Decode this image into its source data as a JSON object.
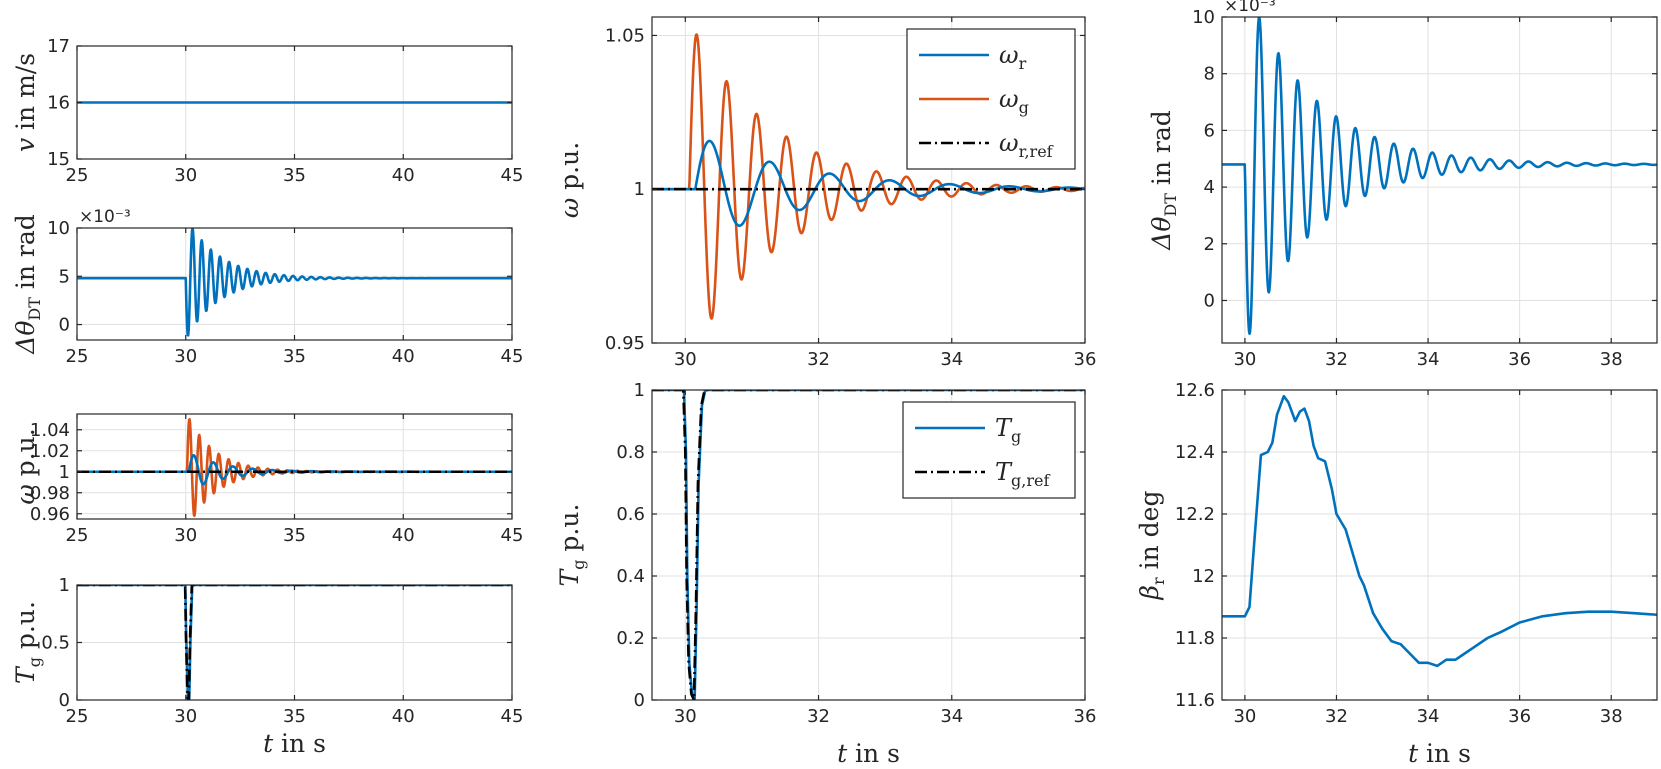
{
  "figure": {
    "colors": {
      "blue": "#0072BD",
      "orange": "#D95319",
      "black": "#000000",
      "grid": "#E1E1E1",
      "axis": "#262626"
    }
  },
  "chart_data": [
    {
      "id": "v",
      "type": "line",
      "xlabel": {
        "main": "",
        "sub": "",
        "post": ""
      },
      "ylabel": {
        "main": "v",
        "sub": "",
        "post": " in m/s"
      },
      "xlim": [
        25,
        45
      ],
      "ylim": [
        15,
        17
      ],
      "xticks": [
        25,
        30,
        35,
        40,
        45
      ],
      "yticks": [
        15,
        16,
        17
      ],
      "multiplier": "",
      "series": [
        {
          "name": "v",
          "color": "blue",
          "style": "solid",
          "x": [
            25,
            45
          ],
          "y": [
            16,
            16
          ]
        }
      ]
    },
    {
      "id": "dtheta_small",
      "type": "line",
      "xlabel": {
        "main": "",
        "sub": "",
        "post": ""
      },
      "ylabel": {
        "main": "Δθ",
        "sub": "DT",
        "post": " in rad"
      },
      "xlim": [
        25,
        45
      ],
      "ylim": [
        -1.6,
        10
      ],
      "xticks": [
        25,
        30,
        35,
        40,
        45
      ],
      "yticks": [
        0,
        5,
        10
      ],
      "multiplier": "×10⁻³",
      "series": [
        {
          "name": "Δθ_DT",
          "color": "blue",
          "style": "solid",
          "gen": {
            "kind": "damped",
            "base": 4.8,
            "t0": 30,
            "amp": -6.4,
            "tau": 1.5,
            "period": 0.42,
            "xmin": 25,
            "xmax": 45
          }
        }
      ]
    },
    {
      "id": "omega_small",
      "type": "line",
      "xlabel": {
        "main": "",
        "sub": "",
        "post": ""
      },
      "ylabel": {
        "main": "ω",
        "sub": "",
        "post": " p.u."
      },
      "xlim": [
        25,
        45
      ],
      "ylim": [
        0.955,
        1.055
      ],
      "xticks": [
        25,
        30,
        35,
        40,
        45
      ],
      "yticks": [
        0.96,
        0.98,
        1,
        1.02,
        1.04
      ],
      "multiplier": "",
      "series": [
        {
          "name": "ω_g",
          "color": "orange",
          "style": "solid",
          "gen": {
            "kind": "damped",
            "base": 1.0,
            "t0": 30.06,
            "amp": 0.055,
            "tau": 1.25,
            "period": 0.45,
            "xmin": 25,
            "xmax": 45
          }
        },
        {
          "name": "ω_r",
          "color": "blue",
          "style": "solid",
          "gen": {
            "kind": "damped",
            "base": 1.0,
            "t0": 30.15,
            "amp": 0.018,
            "tau": 1.6,
            "period": 0.9,
            "xmin": 25,
            "xmax": 45
          }
        },
        {
          "name": "ω_r,ref",
          "color": "black",
          "style": "dashdot",
          "x": [
            25,
            45
          ],
          "y": [
            1,
            1
          ]
        }
      ]
    },
    {
      "id": "tg_small",
      "type": "line",
      "xlabel": {
        "main": "t",
        "sub": "",
        "post": " in s"
      },
      "ylabel": {
        "main": "T",
        "sub": "g",
        "post": " p.u."
      },
      "xlim": [
        25,
        45
      ],
      "ylim": [
        0,
        1
      ],
      "xticks": [
        25,
        30,
        35,
        40,
        45
      ],
      "yticks": [
        0,
        0.5,
        1
      ],
      "multiplier": "",
      "series": [
        {
          "name": "T_g",
          "color": "blue",
          "style": "solid",
          "x": [
            25,
            29.98,
            30.02,
            30.1,
            30.16,
            30.22,
            30.3,
            45
          ],
          "y": [
            1,
            1,
            0.55,
            0.02,
            0,
            0.55,
            1,
            1
          ]
        },
        {
          "name": "T_g,ref",
          "color": "black",
          "style": "dashdot",
          "x": [
            25,
            29.97,
            30.01,
            30.08,
            30.14,
            30.2,
            30.28,
            45
          ],
          "y": [
            1,
            1,
            0.55,
            0.02,
            0,
            0.55,
            1,
            1
          ]
        }
      ]
    },
    {
      "id": "omega_zoom",
      "type": "line",
      "xlabel": {
        "main": "",
        "sub": "",
        "post": ""
      },
      "ylabel": {
        "main": "ω",
        "sub": "",
        "post": " p.u."
      },
      "xlim": [
        29.5,
        36
      ],
      "ylim": [
        0.95,
        1.056
      ],
      "xticks": [
        30,
        32,
        34,
        36
      ],
      "yticks": [
        0.95,
        1,
        1.05
      ],
      "multiplier": "",
      "legend": {
        "position": "top-right",
        "entries": [
          {
            "main": "ω",
            "sub": "r",
            "color": "blue",
            "style": "solid"
          },
          {
            "main": "ω",
            "sub": "g",
            "color": "orange",
            "style": "solid"
          },
          {
            "main": "ω",
            "sub": "r,ref",
            "color": "black",
            "style": "dashdot"
          }
        ]
      },
      "series": [
        {
          "name": "ω_g",
          "color": "orange",
          "style": "solid",
          "gen": {
            "kind": "damped",
            "base": 1.0,
            "t0": 30.06,
            "amp": 0.055,
            "tau": 1.25,
            "period": 0.45,
            "xmin": 29.5,
            "xmax": 36
          }
        },
        {
          "name": "ω_r",
          "color": "blue",
          "style": "solid",
          "gen": {
            "kind": "damped",
            "base": 1.0,
            "t0": 30.15,
            "amp": 0.018,
            "tau": 1.6,
            "period": 0.9,
            "xmin": 29.5,
            "xmax": 36
          }
        },
        {
          "name": "ω_r,ref",
          "color": "black",
          "style": "dashdot",
          "x": [
            29.5,
            36
          ],
          "y": [
            1,
            1
          ]
        }
      ]
    },
    {
      "id": "tg_zoom",
      "type": "line",
      "xlabel": {
        "main": "t",
        "sub": "",
        "post": " in s"
      },
      "ylabel": {
        "main": "T",
        "sub": "g",
        "post": " p.u."
      },
      "xlim": [
        29.5,
        36
      ],
      "ylim": [
        0,
        1
      ],
      "xticks": [
        30,
        32,
        34,
        36
      ],
      "yticks": [
        0,
        0.2,
        0.4,
        0.6,
        0.8,
        1
      ],
      "multiplier": "",
      "legend": {
        "position": "top-right",
        "entries": [
          {
            "main": "T",
            "sub": "g",
            "color": "blue",
            "style": "solid"
          },
          {
            "main": "T",
            "sub": "g,ref",
            "color": "black",
            "style": "dashdot"
          }
        ]
      },
      "series": [
        {
          "name": "T_g",
          "color": "blue",
          "style": "solid",
          "x": [
            29.5,
            29.98,
            30.01,
            30.03,
            30.06,
            30.1,
            30.14,
            30.17,
            30.2,
            30.25,
            30.3,
            36
          ],
          "y": [
            1,
            1,
            0.8,
            0.4,
            0.12,
            0.02,
            0,
            0.3,
            0.7,
            0.95,
            1,
            1
          ]
        },
        {
          "name": "T_g,ref",
          "color": "black",
          "style": "dashdot",
          "x": [
            29.5,
            29.97,
            30.0,
            30.02,
            30.05,
            30.09,
            30.13,
            30.16,
            30.19,
            30.24,
            30.29,
            36
          ],
          "y": [
            1,
            1,
            0.8,
            0.4,
            0.12,
            0.02,
            0,
            0.3,
            0.7,
            0.95,
            1,
            1
          ]
        }
      ]
    },
    {
      "id": "dtheta_zoom",
      "type": "line",
      "xlabel": {
        "main": "",
        "sub": "",
        "post": ""
      },
      "ylabel": {
        "main": "Δθ",
        "sub": "DT",
        "post": " in rad"
      },
      "xlim": [
        29.5,
        39
      ],
      "ylim": [
        -1.5,
        10
      ],
      "xticks": [
        30,
        32,
        34,
        36,
        38
      ],
      "yticks": [
        0,
        2,
        4,
        6,
        8,
        10
      ],
      "multiplier": "×10⁻³",
      "series": [
        {
          "name": "Δθ_DT",
          "color": "blue",
          "style": "solid",
          "gen": {
            "kind": "damped",
            "base": 4.8,
            "t0": 30,
            "amp": -6.4,
            "tau": 1.5,
            "period": 0.42,
            "xmin": 29.5,
            "xmax": 39
          }
        }
      ]
    },
    {
      "id": "beta",
      "type": "line",
      "xlabel": {
        "main": "t",
        "sub": "",
        "post": " in s"
      },
      "ylabel": {
        "main": "β",
        "sub": "r",
        "post": " in deg"
      },
      "xlim": [
        29.5,
        39
      ],
      "ylim": [
        11.6,
        12.6
      ],
      "xticks": [
        30,
        32,
        34,
        36,
        38
      ],
      "yticks": [
        11.6,
        11.8,
        12,
        12.2,
        12.4,
        12.6
      ],
      "multiplier": "",
      "series": [
        {
          "name": "β_r",
          "color": "blue",
          "style": "solid",
          "x": [
            29.5,
            30,
            30.1,
            30.2,
            30.35,
            30.5,
            30.6,
            30.7,
            30.85,
            30.95,
            31.1,
            31.2,
            31.3,
            31.4,
            31.5,
            31.6,
            31.75,
            31.9,
            32.0,
            32.2,
            32.4,
            32.5,
            32.6,
            32.8,
            33.0,
            33.2,
            33.4,
            33.6,
            33.8,
            34.0,
            34.2,
            34.4,
            34.6,
            34.8,
            35.0,
            35.3,
            35.6,
            36.0,
            36.5,
            37.0,
            37.5,
            38.0,
            38.5,
            39.0
          ],
          "y": [
            11.87,
            11.87,
            11.9,
            12.1,
            12.39,
            12.4,
            12.43,
            12.52,
            12.58,
            12.56,
            12.5,
            12.53,
            12.54,
            12.5,
            12.42,
            12.38,
            12.37,
            12.28,
            12.2,
            12.15,
            12.05,
            12.0,
            11.97,
            11.88,
            11.83,
            11.79,
            11.78,
            11.75,
            11.72,
            11.72,
            11.71,
            11.73,
            11.73,
            11.75,
            11.77,
            11.8,
            11.82,
            11.85,
            11.87,
            11.88,
            11.885,
            11.885,
            11.88,
            11.875
          ]
        }
      ]
    }
  ]
}
